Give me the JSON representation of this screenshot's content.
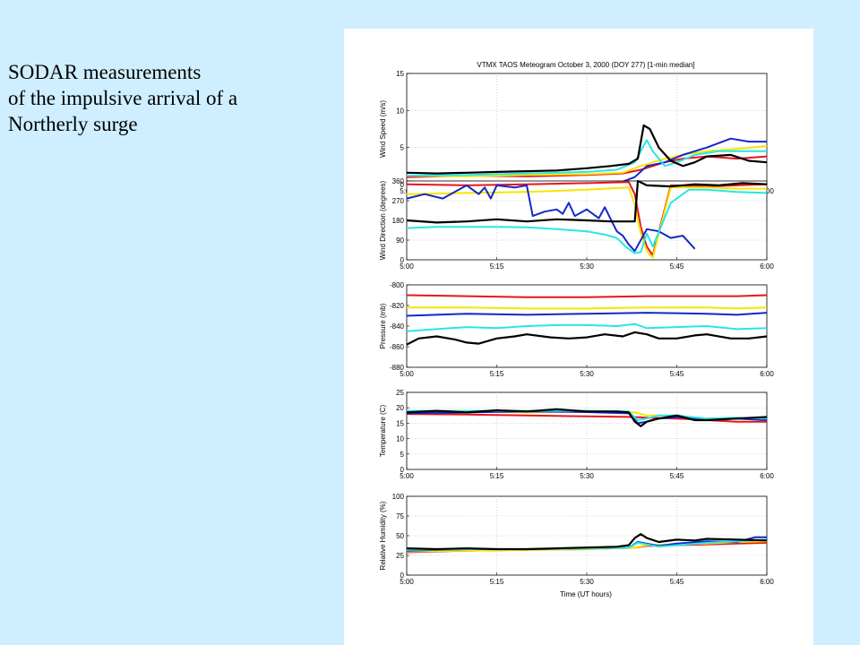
{
  "caption": {
    "lines": [
      "SODAR measurements",
      "of the impulsive arrival of a",
      "Northerly surge"
    ]
  },
  "figure": {
    "title": "VTMX TAOS Meteogram   October 3, 2000 (DOY 277) [1-min median]",
    "xlabel": "Time (UT hours)"
  },
  "series_colors": {
    "red": "#e8141e",
    "yellow": "#f5e600",
    "blue": "#1428c8",
    "cyan": "#28e6e6",
    "black": "#000000"
  },
  "chart_data": [
    {
      "type": "line",
      "ylabel": "Wind Speed (m/s)",
      "xlim": [
        "5:00",
        "6:00"
      ],
      "x_ticks": [
        "5:00",
        "5:15",
        "5:30",
        "5:45",
        "6:00"
      ],
      "ylim": [
        0,
        15
      ],
      "y_ticks": [
        "0",
        "5",
        "10",
        "15"
      ],
      "grid": true,
      "series": [
        {
          "color": "red",
          "x": [
            0,
            10,
            20,
            30,
            36,
            39,
            41,
            43,
            46,
            50,
            55,
            60
          ],
          "y": [
            1,
            1.2,
            1.1,
            1.3,
            1.5,
            2,
            2.5,
            3,
            3.5,
            3.8,
            3.5,
            3.8
          ]
        },
        {
          "color": "yellow",
          "x": [
            0,
            10,
            20,
            30,
            36,
            39,
            41,
            43,
            46,
            50,
            55,
            60
          ],
          "y": [
            1.2,
            1.1,
            1.3,
            1.4,
            1.6,
            2.5,
            3,
            3.5,
            4,
            4.5,
            4.8,
            5.2
          ]
        },
        {
          "color": "blue",
          "x": [
            0,
            5,
            10,
            20,
            30,
            36,
            38,
            40,
            43,
            46,
            50,
            54,
            57,
            60
          ],
          "y": [
            0.4,
            0.3,
            0.2,
            0.1,
            0.2,
            0.4,
            1,
            2.5,
            3,
            4,
            5,
            6.2,
            5.8,
            5.8
          ]
        },
        {
          "color": "cyan",
          "x": [
            0,
            10,
            20,
            30,
            35,
            38,
            40,
            41,
            43,
            45,
            48,
            52,
            56,
            60
          ],
          "y": [
            1.2,
            1.3,
            1.5,
            1.7,
            2,
            3,
            6,
            4.5,
            2.5,
            3,
            4,
            4.5,
            4.5,
            4.5
          ]
        },
        {
          "color": "black",
          "x": [
            0,
            5,
            10,
            15,
            20,
            25,
            30,
            34,
            37,
            38.5,
            39.5,
            40.5,
            42,
            44,
            46,
            48,
            50,
            54,
            57,
            60
          ],
          "y": [
            1.6,
            1.5,
            1.6,
            1.7,
            1.8,
            1.9,
            2.2,
            2.5,
            2.8,
            3.5,
            8,
            7.5,
            5,
            3.2,
            2.5,
            3,
            3.8,
            4,
            3.2,
            3
          ]
        }
      ]
    },
    {
      "type": "line",
      "ylabel": "Wind Direction (degrees)",
      "xlim": [
        "5:00",
        "6:00"
      ],
      "x_ticks": [
        "5:00",
        "5:15",
        "5:30",
        "5:45",
        "6:00"
      ],
      "ylim": [
        0,
        360
      ],
      "y_ticks": [
        "0",
        "90",
        "180",
        "270",
        "360"
      ],
      "grid": true,
      "series": [
        {
          "color": "red",
          "x": [
            0,
            10,
            20,
            30,
            37,
            38,
            39,
            40,
            41,
            44,
            50,
            55,
            60
          ],
          "y": [
            345,
            340,
            345,
            350,
            355,
            300,
            150,
            60,
            20,
            340,
            335,
            340,
            345
          ]
        },
        {
          "color": "yellow",
          "x": [
            0,
            10,
            20,
            30,
            37,
            38,
            39,
            40,
            41,
            44,
            50,
            55,
            60
          ],
          "y": [
            300,
            305,
            310,
            320,
            330,
            250,
            120,
            40,
            10,
            330,
            330,
            325,
            325
          ]
        },
        {
          "color": "blue",
          "x": [
            0,
            3,
            6,
            10,
            12,
            13,
            14,
            15,
            18,
            20,
            21,
            23,
            25,
            26,
            27,
            28,
            30,
            32,
            33,
            35,
            36,
            37,
            38,
            40,
            42,
            44,
            46,
            47,
            48
          ],
          "y": [
            280,
            300,
            280,
            340,
            300,
            330,
            280,
            340,
            330,
            340,
            200,
            220,
            230,
            210,
            260,
            200,
            230,
            190,
            240,
            130,
            110,
            70,
            40,
            140,
            130,
            100,
            110,
            80,
            50
          ]
        },
        {
          "color": "cyan",
          "x": [
            0,
            5,
            10,
            15,
            20,
            25,
            30,
            33,
            35,
            36.5,
            38,
            39,
            40,
            41,
            44,
            47,
            50,
            55,
            60
          ],
          "y": [
            145,
            150,
            150,
            150,
            148,
            140,
            130,
            115,
            100,
            60,
            30,
            35,
            120,
            60,
            260,
            320,
            320,
            310,
            305
          ]
        },
        {
          "color": "black",
          "x": [
            0,
            5,
            10,
            15,
            20,
            25,
            30,
            34,
            38,
            38.5,
            40,
            44,
            48,
            52,
            56,
            60
          ],
          "y": [
            180,
            170,
            175,
            185,
            175,
            185,
            180,
            175,
            175,
            360,
            340,
            335,
            345,
            340,
            350,
            345
          ]
        }
      ]
    },
    {
      "type": "line",
      "ylabel": "Pressure (mb)",
      "xlim": [
        "5:00",
        "6:00"
      ],
      "x_ticks": [
        "5:00",
        "5:15",
        "5:30",
        "5:45",
        "6:00"
      ],
      "ylim": [
        -880,
        -800
      ],
      "y_ticks": [
        "-880",
        "-860",
        "-840",
        "-820",
        "-800"
      ],
      "grid": false,
      "series": [
        {
          "color": "red",
          "x": [
            0,
            10,
            20,
            30,
            40,
            50,
            55,
            60
          ],
          "y": [
            -810,
            -811,
            -812,
            -812,
            -811,
            -811,
            -811,
            -810
          ]
        },
        {
          "color": "yellow",
          "x": [
            0,
            10,
            20,
            30,
            40,
            50,
            55,
            60
          ],
          "y": [
            -822,
            -822,
            -823,
            -823,
            -822,
            -822,
            -823,
            -822
          ]
        },
        {
          "color": "blue",
          "x": [
            0,
            10,
            20,
            30,
            40,
            50,
            55,
            60
          ],
          "y": [
            -830,
            -828,
            -829,
            -828,
            -827,
            -828,
            -829,
            -827
          ]
        },
        {
          "color": "cyan",
          "x": [
            0,
            5,
            10,
            15,
            20,
            25,
            30,
            35,
            38,
            40,
            45,
            50,
            55,
            60
          ],
          "y": [
            -845,
            -843,
            -841,
            -842,
            -840,
            -839,
            -839,
            -840,
            -838,
            -842,
            -841,
            -840,
            -843,
            -842
          ]
        },
        {
          "color": "black",
          "x": [
            0,
            2,
            5,
            8,
            10,
            12,
            15,
            18,
            20,
            24,
            27,
            30,
            33,
            36,
            38,
            40,
            42,
            45,
            48,
            50,
            54,
            57,
            60
          ],
          "y": [
            -858,
            -852,
            -850,
            -853,
            -856,
            -857,
            -852,
            -850,
            -848,
            -851,
            -852,
            -851,
            -848,
            -850,
            -846,
            -848,
            -852,
            -852,
            -849,
            -848,
            -852,
            -852,
            -850
          ]
        }
      ]
    },
    {
      "type": "line",
      "ylabel": "Temperature (C)",
      "xlim": [
        "5:00",
        "6:00"
      ],
      "x_ticks": [
        "5:00",
        "5:15",
        "5:30",
        "5:45",
        "6:00"
      ],
      "ylim": [
        0,
        25
      ],
      "y_ticks": [
        "0",
        "5",
        "10",
        "15",
        "20",
        "25"
      ],
      "grid": true,
      "series": [
        {
          "color": "red",
          "x": [
            0,
            10,
            20,
            30,
            38,
            40,
            45,
            50,
            55,
            60
          ],
          "y": [
            18,
            17.8,
            17.5,
            17.2,
            17,
            16.8,
            16.5,
            16,
            15.5,
            15.5
          ]
        },
        {
          "color": "yellow",
          "x": [
            0,
            10,
            20,
            30,
            38,
            40,
            44,
            48,
            52,
            56,
            60
          ],
          "y": [
            18.5,
            18.8,
            18.5,
            18.8,
            18.5,
            17.5,
            17.5,
            16.5,
            16.5,
            16.5,
            16.5
          ]
        },
        {
          "color": "blue",
          "x": [
            0,
            10,
            20,
            30,
            37,
            38.5,
            40,
            42,
            45,
            50,
            55,
            60
          ],
          "y": [
            18.2,
            18.5,
            18.8,
            18.6,
            18.2,
            15,
            15.5,
            16.5,
            17,
            16,
            16.5,
            16
          ]
        },
        {
          "color": "cyan",
          "x": [
            0,
            10,
            20,
            30,
            37,
            38.5,
            40,
            42,
            45,
            50,
            55,
            60
          ],
          "y": [
            19,
            19,
            19,
            19,
            18.8,
            16,
            16.5,
            17.5,
            17.5,
            16.5,
            16.8,
            16.5
          ]
        },
        {
          "color": "black",
          "x": [
            0,
            5,
            10,
            15,
            20,
            25,
            30,
            35,
            37,
            38,
            39,
            40,
            42,
            45,
            48,
            50,
            55,
            60
          ],
          "y": [
            18.5,
            19,
            18.5,
            19.2,
            18.8,
            19.5,
            18.8,
            18.8,
            18.5,
            15.5,
            14,
            15.5,
            16.5,
            17.5,
            16,
            16,
            16.5,
            17
          ]
        }
      ]
    },
    {
      "type": "line",
      "ylabel": "Relative Humidity (%)",
      "xlim": [
        "5:00",
        "6:00"
      ],
      "x_ticks": [
        "5:00",
        "5:15",
        "5:30",
        "5:45",
        "6:00"
      ],
      "ylim": [
        0,
        100
      ],
      "y_ticks": [
        "0",
        "25",
        "50",
        "75",
        "100"
      ],
      "grid": true,
      "series": [
        {
          "color": "red",
          "x": [
            0,
            10,
            20,
            30,
            38,
            40,
            45,
            50,
            55,
            60
          ],
          "y": [
            29,
            31,
            32,
            33,
            35,
            37,
            38,
            39,
            40,
            41
          ]
        },
        {
          "color": "yellow",
          "x": [
            0,
            10,
            20,
            30,
            38,
            40,
            45,
            50,
            55,
            60
          ],
          "y": [
            30,
            31,
            32,
            33,
            35,
            38,
            39,
            40,
            42,
            43
          ]
        },
        {
          "color": "blue",
          "x": [
            0,
            10,
            20,
            30,
            37,
            38.5,
            40,
            42,
            45,
            50,
            55,
            58,
            60
          ],
          "y": [
            31,
            33,
            33,
            34,
            35,
            42,
            40,
            37,
            40,
            43,
            42,
            48,
            48
          ]
        },
        {
          "color": "cyan",
          "x": [
            0,
            10,
            20,
            30,
            37,
            38.5,
            40,
            42,
            45,
            50,
            55,
            60
          ],
          "y": [
            32,
            33,
            33,
            34,
            35,
            41,
            39,
            36,
            38,
            41,
            43,
            45
          ]
        },
        {
          "color": "black",
          "x": [
            0,
            5,
            10,
            15,
            20,
            25,
            30,
            35,
            37,
            38,
            39,
            40,
            42,
            45,
            48,
            50,
            55,
            60
          ],
          "y": [
            34,
            33,
            34,
            33,
            33,
            34,
            35,
            36,
            38,
            47,
            52,
            47,
            42,
            45,
            44,
            46,
            45,
            44
          ]
        }
      ]
    }
  ]
}
